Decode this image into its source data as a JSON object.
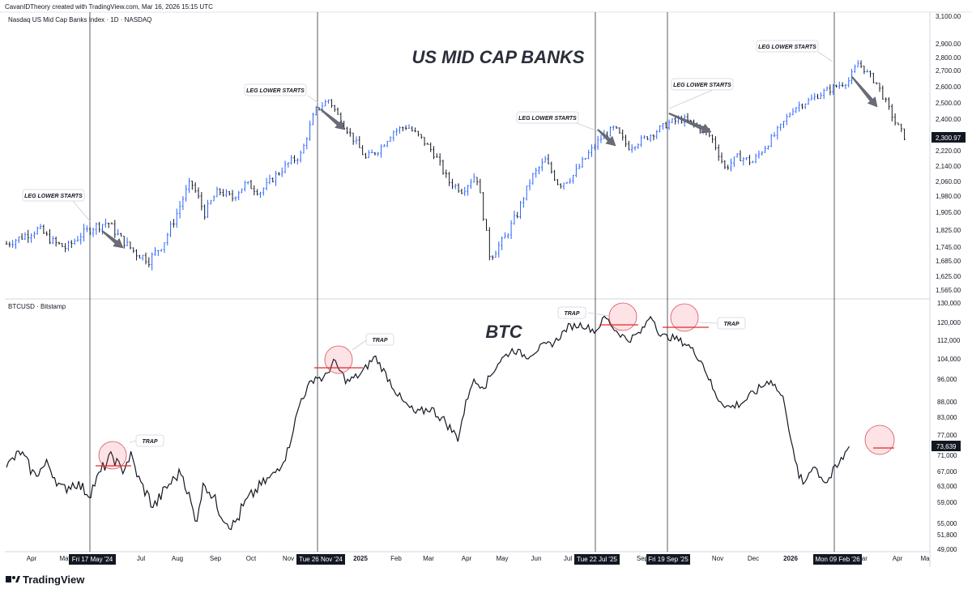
{
  "header": {
    "credit": "CavanIDTheory created with TradingView.com, Mar 16, 2026 15:15 UTC"
  },
  "footer": {
    "brand": "TradingView"
  },
  "chart_data": [
    {
      "type": "candlestick",
      "symbol_label": "Nasdaq US Mid Cap Banks Index · 1D · NASDAQ",
      "title": "US MID CAP BANKS",
      "y_ticks": [
        "3,100.00",
        "2,900.00",
        "2,800.00",
        "2,700.00",
        "2,600.00",
        "2,500.00",
        "2,400.00",
        "2,220.00",
        "2,140.00",
        "2,060.00",
        "1,980.00",
        "1,905.00",
        "1,825.00",
        "1,745.00",
        "1,685.00",
        "1,625.00",
        "1,565.00"
      ],
      "last_price": "2,300.97",
      "ohlc_path": [
        {
          "t": 0.0,
          "v": 1760
        },
        {
          "t": 0.02,
          "v": 1800
        },
        {
          "t": 0.035,
          "v": 1830
        },
        {
          "t": 0.05,
          "v": 1770
        },
        {
          "t": 0.065,
          "v": 1740
        },
        {
          "t": 0.08,
          "v": 1800
        },
        {
          "t": 0.095,
          "v": 1840
        },
        {
          "t": 0.11,
          "v": 1860
        },
        {
          "t": 0.125,
          "v": 1780
        },
        {
          "t": 0.14,
          "v": 1720
        },
        {
          "t": 0.155,
          "v": 1690
        },
        {
          "t": 0.17,
          "v": 1760
        },
        {
          "t": 0.185,
          "v": 1900
        },
        {
          "t": 0.2,
          "v": 2060
        },
        {
          "t": 0.215,
          "v": 1900
        },
        {
          "t": 0.23,
          "v": 2010
        },
        {
          "t": 0.245,
          "v": 1970
        },
        {
          "t": 0.26,
          "v": 2050
        },
        {
          "t": 0.275,
          "v": 2000
        },
        {
          "t": 0.29,
          "v": 2080
        },
        {
          "t": 0.305,
          "v": 2150
        },
        {
          "t": 0.32,
          "v": 2200
        },
        {
          "t": 0.335,
          "v": 2450
        },
        {
          "t": 0.35,
          "v": 2520
        },
        {
          "t": 0.36,
          "v": 2420
        },
        {
          "t": 0.375,
          "v": 2300
        },
        {
          "t": 0.39,
          "v": 2180
        },
        {
          "t": 0.405,
          "v": 2230
        },
        {
          "t": 0.42,
          "v": 2330
        },
        {
          "t": 0.435,
          "v": 2360
        },
        {
          "t": 0.45,
          "v": 2290
        },
        {
          "t": 0.465,
          "v": 2200
        },
        {
          "t": 0.48,
          "v": 2060
        },
        {
          "t": 0.495,
          "v": 2010
        },
        {
          "t": 0.51,
          "v": 2100
        },
        {
          "t": 0.525,
          "v": 1700
        },
        {
          "t": 0.54,
          "v": 1780
        },
        {
          "t": 0.555,
          "v": 1900
        },
        {
          "t": 0.57,
          "v": 2080
        },
        {
          "t": 0.585,
          "v": 2170
        },
        {
          "t": 0.6,
          "v": 2040
        },
        {
          "t": 0.615,
          "v": 2090
        },
        {
          "t": 0.63,
          "v": 2190
        },
        {
          "t": 0.645,
          "v": 2290
        },
        {
          "t": 0.66,
          "v": 2350
        },
        {
          "t": 0.675,
          "v": 2240
        },
        {
          "t": 0.69,
          "v": 2280
        },
        {
          "t": 0.705,
          "v": 2330
        },
        {
          "t": 0.72,
          "v": 2380
        },
        {
          "t": 0.735,
          "v": 2400
        },
        {
          "t": 0.75,
          "v": 2360
        },
        {
          "t": 0.765,
          "v": 2300
        },
        {
          "t": 0.78,
          "v": 2130
        },
        {
          "t": 0.795,
          "v": 2190
        },
        {
          "t": 0.81,
          "v": 2160
        },
        {
          "t": 0.825,
          "v": 2250
        },
        {
          "t": 0.84,
          "v": 2350
        },
        {
          "t": 0.855,
          "v": 2470
        },
        {
          "t": 0.87,
          "v": 2510
        },
        {
          "t": 0.885,
          "v": 2560
        },
        {
          "t": 0.9,
          "v": 2600
        },
        {
          "t": 0.915,
          "v": 2640
        },
        {
          "t": 0.925,
          "v": 2760
        },
        {
          "t": 0.935,
          "v": 2680
        },
        {
          "t": 0.945,
          "v": 2620
        },
        {
          "t": 0.955,
          "v": 2500
        },
        {
          "t": 0.965,
          "v": 2380
        },
        {
          "t": 0.975,
          "v": 2300
        }
      ],
      "annotations": [
        "LEG LOWER STARTS",
        "LEG LOWER STARTS",
        "LEG LOWER STARTS",
        "LEG LOWER STARTS",
        "LEG LOWER STARTS"
      ]
    },
    {
      "type": "line",
      "symbol_label": "BTCUSD · Bitstamp",
      "title": "BTC",
      "y_ticks": [
        "130,000",
        "120,000",
        "112,000",
        "104,000",
        "96,000",
        "88,000",
        "83,000",
        "77,000",
        "71,000",
        "67,000",
        "63,000",
        "59,000",
        "55,000",
        "51,800",
        "49,000"
      ],
      "last_price": "73,639",
      "series": [
        {
          "t": 0.0,
          "v": 68000
        },
        {
          "t": 0.015,
          "v": 72000
        },
        {
          "t": 0.03,
          "v": 66000
        },
        {
          "t": 0.045,
          "v": 69000
        },
        {
          "t": 0.06,
          "v": 62000
        },
        {
          "t": 0.075,
          "v": 64000
        },
        {
          "t": 0.09,
          "v": 61000
        },
        {
          "t": 0.105,
          "v": 68000
        },
        {
          "t": 0.115,
          "v": 71000
        },
        {
          "t": 0.125,
          "v": 67000
        },
        {
          "t": 0.135,
          "v": 71000
        },
        {
          "t": 0.145,
          "v": 64000
        },
        {
          "t": 0.16,
          "v": 58000
        },
        {
          "t": 0.175,
          "v": 63000
        },
        {
          "t": 0.19,
          "v": 67000
        },
        {
          "t": 0.205,
          "v": 55000
        },
        {
          "t": 0.215,
          "v": 64000
        },
        {
          "t": 0.23,
          "v": 58000
        },
        {
          "t": 0.245,
          "v": 54000
        },
        {
          "t": 0.26,
          "v": 59000
        },
        {
          "t": 0.275,
          "v": 63000
        },
        {
          "t": 0.29,
          "v": 66000
        },
        {
          "t": 0.305,
          "v": 72000
        },
        {
          "t": 0.32,
          "v": 89000
        },
        {
          "t": 0.335,
          "v": 97000
        },
        {
          "t": 0.345,
          "v": 96000
        },
        {
          "t": 0.355,
          "v": 103000
        },
        {
          "t": 0.37,
          "v": 95000
        },
        {
          "t": 0.385,
          "v": 98000
        },
        {
          "t": 0.4,
          "v": 105000
        },
        {
          "t": 0.415,
          "v": 96000
        },
        {
          "t": 0.43,
          "v": 88000
        },
        {
          "t": 0.445,
          "v": 84000
        },
        {
          "t": 0.46,
          "v": 86000
        },
        {
          "t": 0.475,
          "v": 82000
        },
        {
          "t": 0.49,
          "v": 76000
        },
        {
          "t": 0.505,
          "v": 95000
        },
        {
          "t": 0.52,
          "v": 94000
        },
        {
          "t": 0.535,
          "v": 103000
        },
        {
          "t": 0.55,
          "v": 108000
        },
        {
          "t": 0.565,
          "v": 105000
        },
        {
          "t": 0.58,
          "v": 109000
        },
        {
          "t": 0.595,
          "v": 111000
        },
        {
          "t": 0.61,
          "v": 118000
        },
        {
          "t": 0.625,
          "v": 119000
        },
        {
          "t": 0.64,
          "v": 116000
        },
        {
          "t": 0.65,
          "v": 123000
        },
        {
          "t": 0.66,
          "v": 117000
        },
        {
          "t": 0.675,
          "v": 112000
        },
        {
          "t": 0.69,
          "v": 116000
        },
        {
          "t": 0.7,
          "v": 124000
        },
        {
          "t": 0.71,
          "v": 114000
        },
        {
          "t": 0.725,
          "v": 113000
        },
        {
          "t": 0.74,
          "v": 110000
        },
        {
          "t": 0.755,
          "v": 103000
        },
        {
          "t": 0.77,
          "v": 90000
        },
        {
          "t": 0.785,
          "v": 86000
        },
        {
          "t": 0.8,
          "v": 88000
        },
        {
          "t": 0.815,
          "v": 92000
        },
        {
          "t": 0.83,
          "v": 96000
        },
        {
          "t": 0.845,
          "v": 88000
        },
        {
          "t": 0.855,
          "v": 70000
        },
        {
          "t": 0.865,
          "v": 63000
        },
        {
          "t": 0.875,
          "v": 69000
        },
        {
          "t": 0.89,
          "v": 64000
        },
        {
          "t": 0.905,
          "v": 69000
        },
        {
          "t": 0.915,
          "v": 73639
        }
      ],
      "annotations": [
        "TRAP",
        "TRAP",
        "TRAP",
        "TRAP"
      ]
    }
  ],
  "x_axis": {
    "ticks": [
      "Apr",
      "May",
      "Jun",
      "Jul",
      "Aug",
      "Sep",
      "Oct",
      "Nov",
      "Dec",
      "2025",
      "Feb",
      "Mar",
      "Apr",
      "May",
      "Jun",
      "Jul",
      "Aug",
      "Sep",
      "Oct",
      "Nov",
      "Dec",
      "2026",
      "Feb",
      "Mar",
      "Apr",
      "Ma"
    ],
    "bold_ticks": [
      "2025",
      "2026"
    ],
    "markers": [
      "Fri 17 May '24",
      "Tue 26 Nov '24",
      "Tue 22 Jul '25",
      "Fri 19 Sep '25",
      "Mon 09 Feb '26"
    ]
  }
}
